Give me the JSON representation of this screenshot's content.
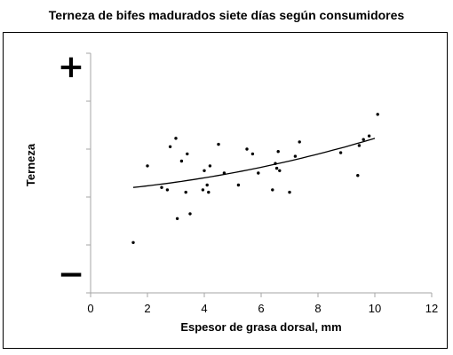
{
  "chart_data": {
    "type": "scatter",
    "title": "Terneza de bifes madurados siete días según consumidores",
    "xlabel": "Espesor de grasa dorsal, mm",
    "ylabel": "Terneza",
    "y_top_symbol": "+",
    "y_bottom_symbol": "−",
    "xlim": [
      0,
      12
    ],
    "ylim": [
      0,
      1
    ],
    "x_ticks": [
      0,
      2,
      4,
      6,
      8,
      10,
      12
    ],
    "grid": false,
    "legend": "none",
    "points": [
      {
        "x": 1.5,
        "y": 0.21
      },
      {
        "x": 2.0,
        "y": 0.53
      },
      {
        "x": 2.5,
        "y": 0.44
      },
      {
        "x": 2.7,
        "y": 0.43
      },
      {
        "x": 2.8,
        "y": 0.61
      },
      {
        "x": 3.0,
        "y": 0.645
      },
      {
        "x": 3.05,
        "y": 0.31
      },
      {
        "x": 3.2,
        "y": 0.55
      },
      {
        "x": 3.35,
        "y": 0.42
      },
      {
        "x": 3.4,
        "y": 0.58
      },
      {
        "x": 3.5,
        "y": 0.33
      },
      {
        "x": 3.95,
        "y": 0.43
      },
      {
        "x": 4.0,
        "y": 0.51
      },
      {
        "x": 4.1,
        "y": 0.45
      },
      {
        "x": 4.15,
        "y": 0.42
      },
      {
        "x": 4.2,
        "y": 0.53
      },
      {
        "x": 4.5,
        "y": 0.62
      },
      {
        "x": 4.7,
        "y": 0.5
      },
      {
        "x": 5.2,
        "y": 0.45
      },
      {
        "x": 5.5,
        "y": 0.6
      },
      {
        "x": 5.7,
        "y": 0.58
      },
      {
        "x": 5.9,
        "y": 0.5
      },
      {
        "x": 6.4,
        "y": 0.43
      },
      {
        "x": 6.5,
        "y": 0.54
      },
      {
        "x": 6.55,
        "y": 0.52
      },
      {
        "x": 6.6,
        "y": 0.59
      },
      {
        "x": 6.65,
        "y": 0.51
      },
      {
        "x": 7.0,
        "y": 0.42
      },
      {
        "x": 7.2,
        "y": 0.57
      },
      {
        "x": 7.35,
        "y": 0.63
      },
      {
        "x": 8.8,
        "y": 0.585
      },
      {
        "x": 9.4,
        "y": 0.49
      },
      {
        "x": 9.45,
        "y": 0.615
      },
      {
        "x": 9.6,
        "y": 0.64
      },
      {
        "x": 9.8,
        "y": 0.655
      },
      {
        "x": 10.1,
        "y": 0.745
      }
    ],
    "trendline": {
      "type": "quadratic",
      "x_range": [
        1.5,
        10.0
      ],
      "samples": [
        {
          "x": 1.5,
          "y": 0.44
        },
        {
          "x": 4.0,
          "y": 0.48
        },
        {
          "x": 6.5,
          "y": 0.54
        },
        {
          "x": 10.0,
          "y": 0.645
        }
      ]
    }
  }
}
